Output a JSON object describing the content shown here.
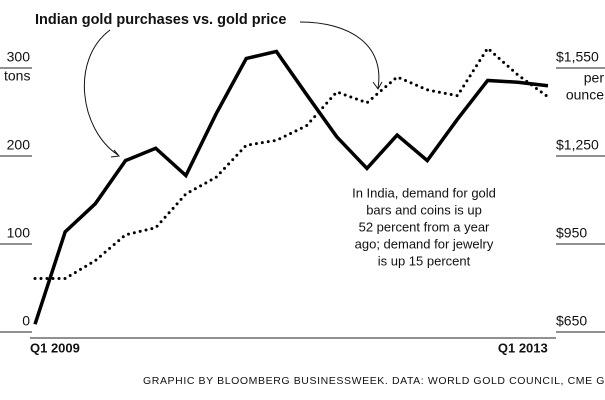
{
  "chart_data": {
    "type": "line",
    "title": "Indian gold purchases vs. gold price",
    "categories": [
      "Q1 2009",
      null,
      null,
      null,
      null,
      null,
      null,
      null,
      null,
      null,
      null,
      null,
      null,
      null,
      null,
      null,
      "Q1 2013",
      null
    ],
    "series": [
      {
        "name": "Indian gold purchases",
        "color": "#000000",
        "style": "solid",
        "values": [
          2,
          107,
          139,
          188,
          202,
          171,
          241,
          304,
          312,
          263,
          215,
          179,
          217,
          188,
          235,
          279,
          277,
          273
        ]
      },
      {
        "name": "gold price",
        "color": "#000000",
        "style": "dotted",
        "axis": "y2",
        "values": [
          812,
          812,
          873,
          961,
          985,
          1100,
          1157,
          1266,
          1283,
          1333,
          1448,
          1411,
          1499,
          1455,
          1435,
          1597,
          1506,
          1431
        ]
      }
    ],
    "ylim": [
      0,
      300
    ],
    "yticks": [
      0,
      100,
      200,
      300
    ],
    "ylabel": "tons",
    "y2lim": [
      650,
      1550
    ],
    "y2ticks": [
      {
        "value": 650,
        "label": "$650"
      },
      {
        "value": 950,
        "label": "$950"
      },
      {
        "value": 1250,
        "label": "$1,250"
      },
      {
        "value": 1550,
        "label": "$1,550"
      }
    ],
    "y2label": [
      "per",
      "ounce"
    ],
    "annotation": [
      "In India, demand for gold",
      "bars and coins is up",
      "52 percent from a year",
      "ago; demand for jewelry",
      "is up 15 percent"
    ],
    "source": "GRAPHIC BY BLOOMBERG BUSINESSWEEK. DATA: WORLD GOLD COUNCIL, CME GROUP"
  }
}
